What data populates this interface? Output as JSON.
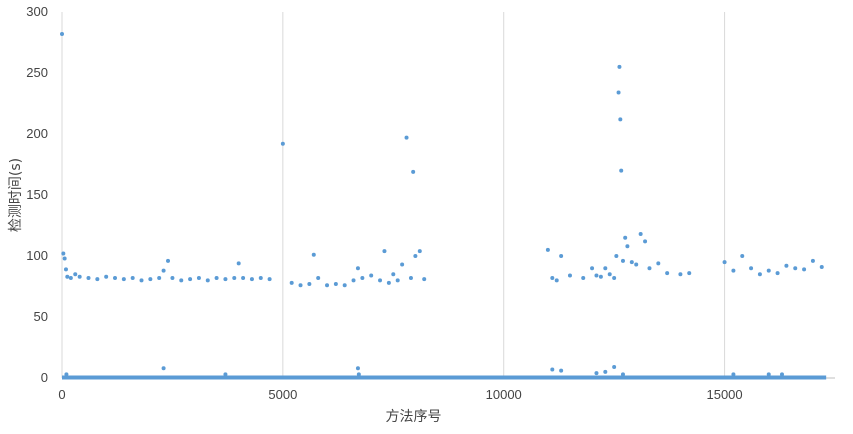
{
  "chart_data": {
    "type": "scatter",
    "title": "",
    "xlabel": "方法序号",
    "ylabel": "检测时间(s)",
    "xlim": [
      0,
      17500
    ],
    "ylim": [
      0,
      300
    ],
    "x_ticks": [
      0,
      5000,
      10000,
      15000
    ],
    "y_ticks": [
      0,
      50,
      100,
      150,
      200,
      250,
      300
    ],
    "grid": "vertical",
    "legend": "none",
    "point_color": "#5b9bd5",
    "baseline_band": {
      "x_start": 0,
      "x_end": 17300,
      "y": 0
    },
    "series": [
      {
        "points": [
          [
            0,
            282
          ],
          [
            30,
            102
          ],
          [
            60,
            98
          ],
          [
            90,
            89
          ],
          [
            120,
            83
          ],
          [
            200,
            82
          ],
          [
            300,
            85
          ],
          [
            400,
            83
          ],
          [
            600,
            82
          ],
          [
            800,
            81
          ],
          [
            1000,
            83
          ],
          [
            1200,
            82
          ],
          [
            1400,
            81
          ],
          [
            1600,
            82
          ],
          [
            1800,
            80
          ],
          [
            2000,
            81
          ],
          [
            2200,
            82
          ],
          [
            2300,
            88
          ],
          [
            2400,
            96
          ],
          [
            2500,
            82
          ],
          [
            2700,
            80
          ],
          [
            2900,
            81
          ],
          [
            3100,
            82
          ],
          [
            3300,
            80
          ],
          [
            3500,
            82
          ],
          [
            3700,
            81
          ],
          [
            3900,
            82
          ],
          [
            4000,
            94
          ],
          [
            4100,
            82
          ],
          [
            4300,
            81
          ],
          [
            4500,
            82
          ],
          [
            4700,
            81
          ],
          [
            5000,
            192
          ],
          [
            5200,
            78
          ],
          [
            5400,
            76
          ],
          [
            5600,
            77
          ],
          [
            5700,
            101
          ],
          [
            5800,
            82
          ],
          [
            6000,
            76
          ],
          [
            6200,
            77
          ],
          [
            6400,
            76
          ],
          [
            6600,
            80
          ],
          [
            6700,
            90
          ],
          [
            6800,
            82
          ],
          [
            7000,
            84
          ],
          [
            7200,
            80
          ],
          [
            7300,
            104
          ],
          [
            7400,
            78
          ],
          [
            7500,
            85
          ],
          [
            7600,
            80
          ],
          [
            7700,
            93
          ],
          [
            7800,
            197
          ],
          [
            7900,
            82
          ],
          [
            7950,
            169
          ],
          [
            8000,
            100
          ],
          [
            8100,
            104
          ],
          [
            8200,
            81
          ],
          [
            11000,
            105
          ],
          [
            11100,
            82
          ],
          [
            11200,
            80
          ],
          [
            11300,
            100
          ],
          [
            11500,
            84
          ],
          [
            11800,
            82
          ],
          [
            12000,
            90
          ],
          [
            12100,
            84
          ],
          [
            12200,
            83
          ],
          [
            12300,
            90
          ],
          [
            12400,
            85
          ],
          [
            12500,
            82
          ],
          [
            12550,
            100
          ],
          [
            12600,
            234
          ],
          [
            12620,
            255
          ],
          [
            12640,
            212
          ],
          [
            12660,
            170
          ],
          [
            12700,
            96
          ],
          [
            12750,
            115
          ],
          [
            12800,
            108
          ],
          [
            12900,
            95
          ],
          [
            13000,
            93
          ],
          [
            13100,
            118
          ],
          [
            13200,
            112
          ],
          [
            13300,
            90
          ],
          [
            13500,
            94
          ],
          [
            13700,
            86
          ],
          [
            14000,
            85
          ],
          [
            14200,
            86
          ],
          [
            15000,
            95
          ],
          [
            15200,
            88
          ],
          [
            15400,
            100
          ],
          [
            15600,
            90
          ],
          [
            15800,
            85
          ],
          [
            16000,
            88
          ],
          [
            16200,
            86
          ],
          [
            16400,
            92
          ],
          [
            16600,
            90
          ],
          [
            16800,
            89
          ],
          [
            17000,
            96
          ],
          [
            17200,
            91
          ],
          [
            100,
            3
          ],
          [
            2300,
            8
          ],
          [
            3700,
            3
          ],
          [
            6700,
            8
          ],
          [
            6720,
            3
          ],
          [
            11100,
            7
          ],
          [
            11300,
            6
          ],
          [
            12100,
            4
          ],
          [
            12300,
            5
          ],
          [
            12500,
            9
          ],
          [
            12700,
            3
          ],
          [
            15200,
            3
          ],
          [
            16000,
            3
          ],
          [
            16300,
            3
          ]
        ]
      }
    ]
  }
}
